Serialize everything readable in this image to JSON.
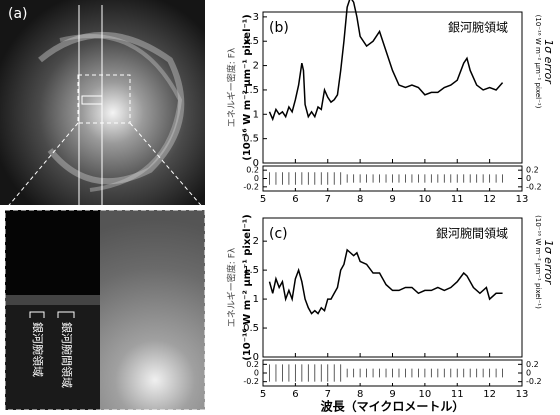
{
  "image_panel": {
    "label": "(a)",
    "arm_label": "銀河腕領域",
    "interarm_label": "銀河腕間領域"
  },
  "chart_data": [
    {
      "type": "line",
      "panel_label": "(b)",
      "annotation": "銀河腕領域",
      "y_label": "エネルギー密度: Fλ",
      "y_unit": "(10⁻¹⁶ W m⁻² μm⁻¹ pixel⁻¹)",
      "xlim": [
        5,
        13
      ],
      "ylim": [
        0,
        3.1
      ],
      "yticks": [
        0,
        0.5,
        1,
        1.5,
        2,
        2.5,
        3
      ],
      "series": [
        {
          "color": "#000000",
          "x": [
            5.2,
            5.3,
            5.4,
            5.5,
            5.6,
            5.7,
            5.8,
            5.9,
            6.0,
            6.1,
            6.2,
            6.25,
            6.3,
            6.4,
            6.5,
            6.6,
            6.7,
            6.8,
            6.9,
            7.0,
            7.1,
            7.2,
            7.3,
            7.4,
            7.5,
            7.6,
            7.7,
            7.8,
            7.9,
            8.0,
            8.2,
            8.4,
            8.6,
            8.8,
            9.0,
            9.2,
            9.4,
            9.6,
            9.8,
            10.0,
            10.2,
            10.4,
            10.6,
            10.8,
            11.0,
            11.2,
            11.3,
            11.4,
            11.6,
            11.8,
            12.0,
            12.2,
            12.4
          ],
          "values": [
            1.05,
            0.9,
            1.1,
            1.0,
            1.05,
            0.95,
            1.15,
            1.05,
            1.3,
            1.6,
            2.05,
            1.9,
            1.2,
            0.95,
            1.05,
            0.95,
            1.15,
            1.1,
            1.5,
            1.35,
            1.25,
            1.3,
            1.4,
            1.9,
            2.5,
            3.2,
            3.4,
            3.3,
            3.0,
            2.6,
            2.4,
            2.5,
            2.7,
            2.3,
            1.9,
            1.6,
            1.55,
            1.6,
            1.55,
            1.4,
            1.45,
            1.45,
            1.55,
            1.6,
            1.7,
            2.05,
            2.15,
            1.9,
            1.6,
            1.5,
            1.55,
            1.5,
            1.65
          ]
        }
      ]
    },
    {
      "type": "errorbar",
      "y2_label": "1σ error",
      "y2_unit": "(10⁻¹⁶ W m⁻² μm⁻¹ pixel⁻¹)",
      "xlim": [
        5,
        13
      ],
      "xticks": [
        5,
        6,
        7,
        8,
        9,
        10,
        11,
        12,
        13
      ],
      "ylim": [
        -0.3,
        0.3
      ],
      "yticks": [
        0.2,
        0,
        -0.2
      ],
      "y2lim": [
        -0.3,
        0.3
      ],
      "y2ticks": [
        0.2,
        0,
        -0.2
      ],
      "x": [
        5.2,
        5.4,
        5.6,
        5.8,
        6.0,
        6.2,
        6.4,
        6.6,
        6.8,
        7.0,
        7.2,
        7.4,
        7.6,
        7.8,
        8.0,
        8.2,
        8.4,
        8.6,
        8.8,
        9.0,
        9.2,
        9.4,
        9.6,
        9.8,
        10.0,
        10.2,
        10.4,
        10.6,
        10.8,
        11.0,
        11.2,
        11.4,
        11.6,
        11.8,
        12.0,
        12.2,
        12.4
      ],
      "values": [
        0,
        0,
        0,
        0,
        0,
        0,
        0,
        0,
        0,
        0,
        0,
        0,
        0,
        0,
        0,
        0,
        0,
        0,
        0,
        0,
        0,
        0,
        0,
        0,
        0,
        0,
        0,
        0,
        0,
        0,
        0,
        0,
        0,
        0,
        0,
        0,
        0
      ],
      "errors": [
        0.15,
        0.15,
        0.15,
        0.15,
        0.15,
        0.15,
        0.15,
        0.15,
        0.15,
        0.15,
        0.15,
        0.15,
        0.1,
        0.1,
        0.1,
        0.1,
        0.1,
        0.1,
        0.1,
        0.1,
        0.1,
        0.1,
        0.1,
        0.1,
        0.1,
        0.1,
        0.1,
        0.1,
        0.1,
        0.1,
        0.1,
        0.1,
        0.1,
        0.1,
        0.1,
        0.1,
        0.1
      ]
    },
    {
      "type": "line",
      "panel_label": "(c)",
      "annotation": "銀河腕間領域",
      "y_label": "エネルギー密度: Fλ",
      "y_unit": "(10⁻¹⁶ W m⁻² μm⁻¹ pixel⁻¹)",
      "xlim": [
        5,
        13
      ],
      "ylim": [
        0,
        2.4
      ],
      "yticks": [
        0,
        0.5,
        1,
        1.5,
        2
      ],
      "series": [
        {
          "color": "#000000",
          "x": [
            5.2,
            5.3,
            5.4,
            5.5,
            5.6,
            5.7,
            5.8,
            5.9,
            6.0,
            6.1,
            6.2,
            6.3,
            6.4,
            6.5,
            6.6,
            6.7,
            6.8,
            6.9,
            7.0,
            7.1,
            7.2,
            7.3,
            7.4,
            7.5,
            7.6,
            7.7,
            7.8,
            7.9,
            8.0,
            8.2,
            8.4,
            8.6,
            8.8,
            9.0,
            9.2,
            9.4,
            9.6,
            9.8,
            10.0,
            10.2,
            10.4,
            10.6,
            10.8,
            11.0,
            11.2,
            11.3,
            11.5,
            11.7,
            11.9,
            12.0,
            12.2,
            12.4
          ],
          "values": [
            1.3,
            1.1,
            1.35,
            1.2,
            1.3,
            1.0,
            1.15,
            1.0,
            1.35,
            1.5,
            1.3,
            1.0,
            0.85,
            0.75,
            0.8,
            0.75,
            0.85,
            0.8,
            1.0,
            1.0,
            1.1,
            1.2,
            1.5,
            1.6,
            1.85,
            1.8,
            1.75,
            1.8,
            1.65,
            1.6,
            1.45,
            1.45,
            1.25,
            1.15,
            1.15,
            1.2,
            1.2,
            1.1,
            1.15,
            1.15,
            1.2,
            1.15,
            1.2,
            1.3,
            1.45,
            1.4,
            1.2,
            1.1,
            1.2,
            1.0,
            1.1,
            1.1
          ]
        }
      ]
    },
    {
      "type": "errorbar",
      "y2_label": "1σ error",
      "y2_unit": "(10⁻¹⁶ W m⁻² μm⁻¹ pixel⁻¹)",
      "x_label": "波長（マイクロメートル）",
      "xlim": [
        5,
        13
      ],
      "xticks": [
        5,
        6,
        7,
        8,
        9,
        10,
        11,
        12,
        13
      ],
      "ylim": [
        -0.3,
        0.3
      ],
      "yticks": [
        0.2,
        0,
        -0.2
      ],
      "y2lim": [
        -0.3,
        0.3
      ],
      "y2ticks": [
        0.2,
        0,
        -0.2
      ],
      "x": [
        5.2,
        5.4,
        5.6,
        5.8,
        6.0,
        6.2,
        6.4,
        6.6,
        6.8,
        7.0,
        7.2,
        7.4,
        7.6,
        7.8,
        8.0,
        8.2,
        8.4,
        8.6,
        8.8,
        9.0,
        9.2,
        9.4,
        9.6,
        9.8,
        10.0,
        10.2,
        10.4,
        10.6,
        10.8,
        11.0,
        11.2,
        11.4,
        11.6,
        11.8,
        12.0,
        12.2,
        12.4
      ],
      "values": [
        0,
        0,
        0,
        0,
        0,
        0,
        0,
        0,
        0,
        0,
        0,
        0,
        0,
        0,
        0,
        0,
        0,
        0,
        0,
        0,
        0,
        0,
        0,
        0,
        0,
        0,
        0,
        0,
        0,
        0,
        0,
        0,
        0,
        0,
        0,
        0,
        0
      ],
      "errors": [
        0.2,
        0.2,
        0.2,
        0.2,
        0.2,
        0.2,
        0.2,
        0.2,
        0.2,
        0.2,
        0.2,
        0.2,
        0.1,
        0.1,
        0.1,
        0.1,
        0.1,
        0.1,
        0.1,
        0.1,
        0.1,
        0.1,
        0.1,
        0.1,
        0.1,
        0.1,
        0.1,
        0.1,
        0.1,
        0.1,
        0.1,
        0.1,
        0.1,
        0.1,
        0.1,
        0.1,
        0.1
      ]
    }
  ]
}
